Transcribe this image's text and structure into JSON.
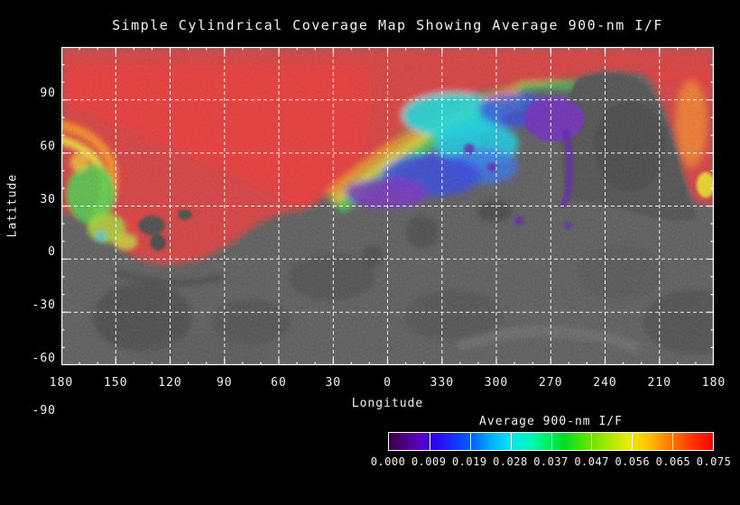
{
  "figure": {
    "title": "Simple Cylindrical Coverage Map Showing Average 900-nm I/F",
    "background_color": "#000000",
    "x_axis": {
      "label": "Longitude",
      "ticks": [
        "180",
        "150",
        "120",
        "90",
        "60",
        "30",
        "0",
        "330",
        "300",
        "270",
        "240",
        "210",
        "180"
      ]
    },
    "y_axis": {
      "label": "Latitude",
      "ticks": [
        "90",
        "60",
        "30",
        "0",
        "-30",
        "-60",
        "-90"
      ]
    },
    "colorbar": {
      "title": "Average 900-nm I/F",
      "labels": [
        "0.000",
        "0.009",
        "0.019",
        "0.028",
        "0.037",
        "0.047",
        "0.056",
        "0.065",
        "0.075"
      ]
    }
  },
  "chart_data": {
    "type": "heatmap",
    "title": "Simple Cylindrical Coverage Map Showing Average 900-nm I/F",
    "xlabel": "Longitude",
    "ylabel": "Latitude",
    "x_tick_labels_deg": [
      180,
      150,
      120,
      90,
      60,
      30,
      0,
      330,
      300,
      270,
      240,
      210,
      180
    ],
    "y_tick_labels_deg": [
      90,
      60,
      30,
      0,
      -30,
      -60,
      -90
    ],
    "ylim": [
      -90,
      90
    ],
    "grid": true,
    "grid_style": "white dashed lines every 30 degrees",
    "basemap": "grayscale surface mosaic shown where no 900-nm I/F coverage exists",
    "colorbar": {
      "title": "Average 900-nm I/F",
      "min": 0.0,
      "max": 0.075,
      "tick_values": [
        0.0,
        0.009,
        0.019,
        0.028,
        0.037,
        0.047,
        0.056,
        0.065,
        0.075
      ],
      "palette": "rainbow (dark purple -> blue -> cyan -> green -> yellow -> orange -> red)",
      "segment_colors": [
        "#4a0080",
        "#1a28ff",
        "#00a0ff",
        "#00f0a8",
        "#22dd11",
        "#aaee00",
        "#ffaa00",
        "#ff2200"
      ]
    },
    "coverage_regions": [
      {
        "value_level": "high (~0.065-0.075, red)",
        "location": "entire band above ~60 lat, western longitudes (180-60) down to ~-30 lat, and right edge near 210-180 lon"
      },
      {
        "value_level": "gradient arc 0.056->0.000 (orange-yellow-green-cyan-blue-purple)",
        "location": "diagonal band from ~30 lon, 20 lat rising to ~300 lon, 60 lat, with blue/purple lobe near 330-300 lon, 15-35 lat"
      },
      {
        "value_level": "multicolor swirl (yellow/green/cyan)",
        "location": "near 165-180 lon, between ~-20 and 30 lat"
      },
      {
        "value_level": "no coverage (gray mosaic)",
        "location": "most of southern hemisphere and large blob near 280-250 lon, 20-60 lat"
      }
    ]
  }
}
